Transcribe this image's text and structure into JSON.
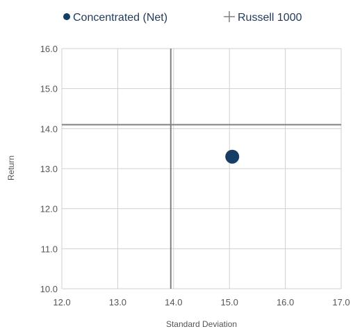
{
  "chart_data": {
    "type": "scatter",
    "xlabel": "Standard Deviation",
    "ylabel": "Return",
    "xlim": [
      12.0,
      17.0
    ],
    "ylim": [
      10.0,
      16.0
    ],
    "x_ticks": [
      "12.0",
      "13.0",
      "14.0",
      "15.0",
      "16.0",
      "17.0"
    ],
    "y_ticks": [
      "10.0",
      "11.0",
      "12.0",
      "13.0",
      "14.0",
      "15.0",
      "16.0"
    ],
    "grid": true,
    "legend_position": "top",
    "series": [
      {
        "name": "Concentrated (Net)",
        "marker": "circle",
        "color": "#163d63",
        "points": [
          {
            "x": 15.05,
            "y": 13.3
          }
        ]
      },
      {
        "name": "Russell 1000",
        "marker": "crosshair",
        "color": "#808080",
        "points": [
          {
            "x": 13.95,
            "y": 14.1
          }
        ]
      }
    ]
  }
}
